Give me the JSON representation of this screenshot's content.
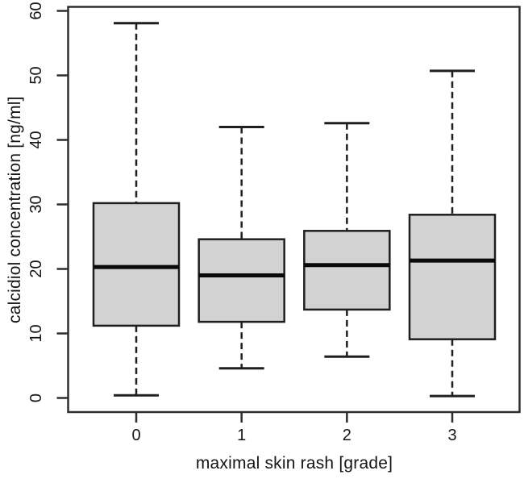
{
  "chart_data": {
    "type": "boxplot",
    "title": "",
    "xlabel": "maximal skin rash [grade]",
    "ylabel": "calcidiol concentration [ng/ml]",
    "categories": [
      "0",
      "1",
      "2",
      "3"
    ],
    "yticks": [
      0,
      10,
      20,
      30,
      40,
      50,
      60
    ],
    "ylim": [
      0,
      60
    ],
    "grid": false,
    "legend": null,
    "series": [
      {
        "category": "0",
        "min": 0.4,
        "q1": 11.2,
        "median": 20.3,
        "q3": 30.2,
        "max": 58.1
      },
      {
        "category": "1",
        "min": 4.6,
        "q1": 11.8,
        "median": 19.0,
        "q3": 24.6,
        "max": 42.0
      },
      {
        "category": "2",
        "min": 6.4,
        "q1": 13.7,
        "median": 20.6,
        "q3": 25.9,
        "max": 42.6
      },
      {
        "category": "3",
        "min": 0.3,
        "q1": 9.1,
        "median": 21.3,
        "q3": 28.4,
        "max": 50.7
      }
    ],
    "colors": {
      "background": "#ffffff",
      "box_fill": "#d2d2d2",
      "box_border": "#1f1f1f",
      "median": "#0a0a0a",
      "whisker": "#1f1f1f",
      "frame": "#2e2e2e",
      "text": "#151515"
    }
  }
}
